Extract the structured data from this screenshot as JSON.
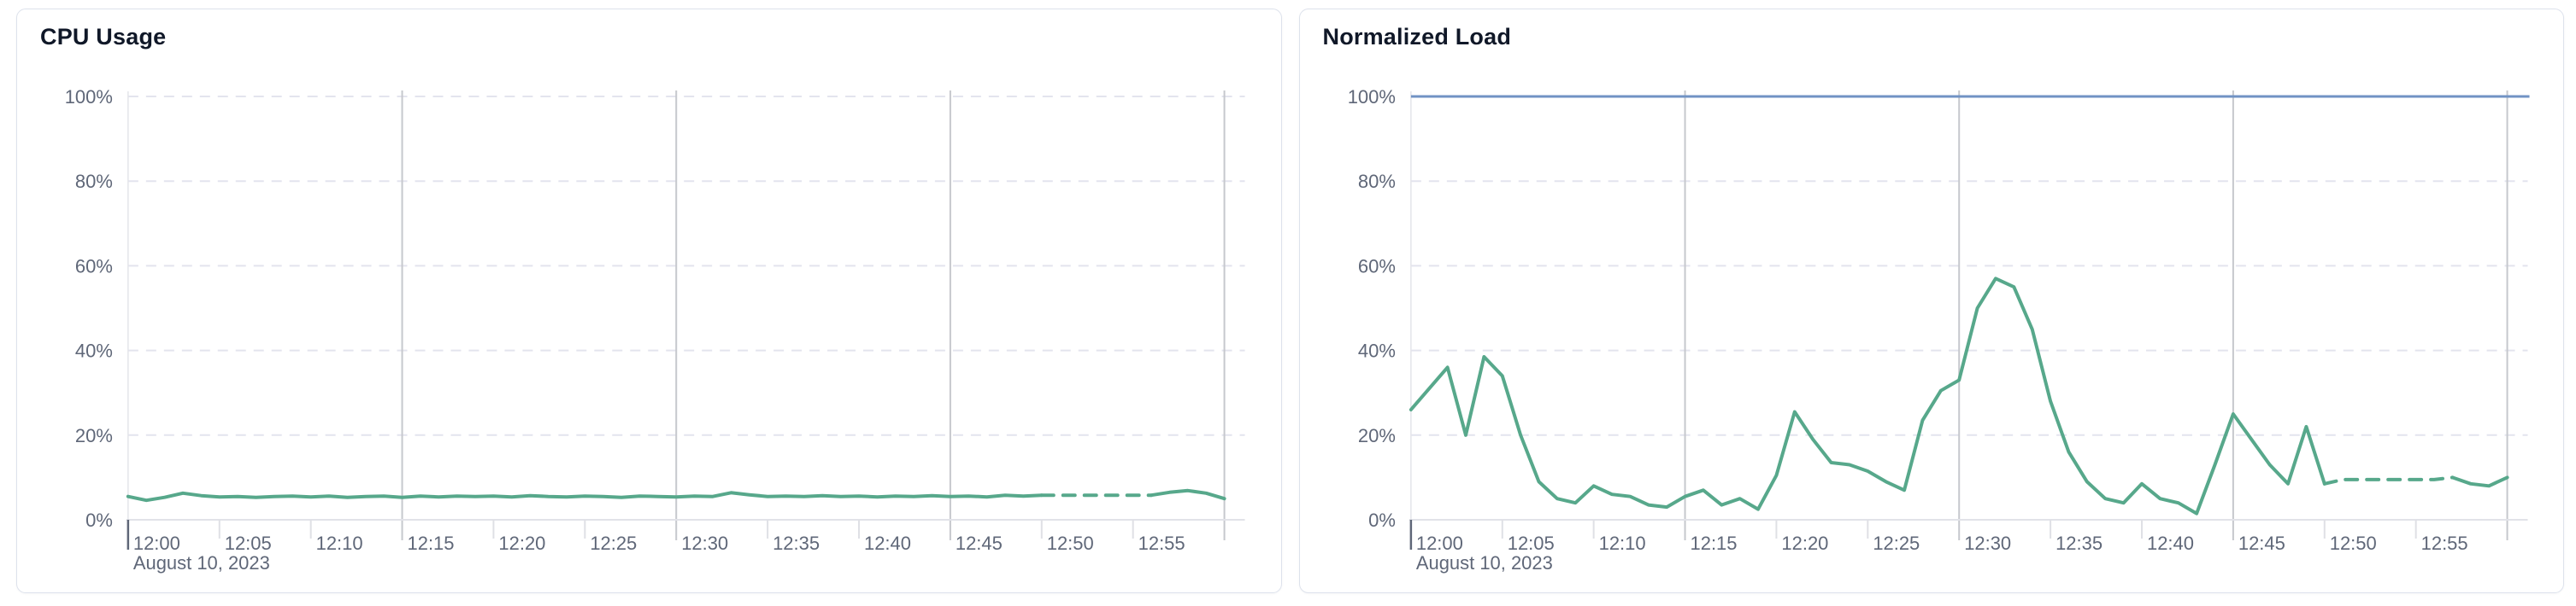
{
  "style": {
    "accent_green": "#57a88b",
    "accent_blue": "#7193c4",
    "text_muted": "#5f6778",
    "title_color": "#101828",
    "grid_dashed_color": "#e3e4ee",
    "grid_vertical_color": "#c6c8cd",
    "axis_color": "#e1e2e8",
    "minor_tick_color": "#dfe0e5",
    "plot_border_color": "#e4e5ea",
    "card_border_color": "#dde2ec"
  },
  "chart_data": [
    {
      "type": "line",
      "title": "CPU Usage",
      "xlabel": "",
      "ylabel": "",
      "date_label": "August 10, 2023",
      "x_tick_labels": [
        "12:00",
        "12:05",
        "12:10",
        "12:15",
        "12:20",
        "12:25",
        "12:30",
        "12:35",
        "12:40",
        "12:45",
        "12:50",
        "12:55"
      ],
      "x_tick_minutes": [
        0,
        5,
        10,
        15,
        20,
        25,
        30,
        35,
        40,
        45,
        50,
        55
      ],
      "y_tick_labels": [
        "0%",
        "20%",
        "40%",
        "60%",
        "80%",
        "100%"
      ],
      "y_tick_values": [
        0,
        20,
        40,
        60,
        80,
        100
      ],
      "ylim": [
        0,
        100
      ],
      "xlim_minutes": [
        0,
        60
      ],
      "grid": {
        "horizontal_dashed_at": [
          20,
          40,
          60,
          80,
          100
        ],
        "vertical_solid_at_minutes": [
          15,
          30,
          45,
          60
        ],
        "minor_tick_minutes": [
          5,
          10,
          20,
          25,
          35,
          40,
          50,
          55
        ]
      },
      "series": [
        {
          "name": "cpu-usage-percent",
          "kind": "line",
          "color": "#57a88b",
          "start_minute": 0,
          "step_minutes": 1,
          "solid_until_minute": 50,
          "dashed_until_minute": 56,
          "values": [
            5.5,
            4.6,
            5.3,
            6.3,
            5.7,
            5.4,
            5.5,
            5.3,
            5.5,
            5.6,
            5.4,
            5.6,
            5.3,
            5.5,
            5.6,
            5.3,
            5.6,
            5.4,
            5.6,
            5.5,
            5.6,
            5.4,
            5.7,
            5.5,
            5.4,
            5.6,
            5.5,
            5.3,
            5.6,
            5.5,
            5.4,
            5.6,
            5.5,
            6.4,
            5.9,
            5.5,
            5.6,
            5.5,
            5.7,
            5.5,
            5.6,
            5.4,
            5.6,
            5.5,
            5.7,
            5.5,
            5.6,
            5.4,
            5.8,
            5.6,
            5.8,
            5.8,
            5.8,
            5.8,
            5.8,
            5.8,
            5.8,
            6.5,
            6.9,
            6.3,
            5.0
          ]
        }
      ]
    },
    {
      "type": "line",
      "title": "Normalized Load",
      "xlabel": "",
      "ylabel": "",
      "date_label": "August 10, 2023",
      "x_tick_labels": [
        "12:00",
        "12:05",
        "12:10",
        "12:15",
        "12:20",
        "12:25",
        "12:30",
        "12:35",
        "12:40",
        "12:45",
        "12:50",
        "12:55"
      ],
      "x_tick_minutes": [
        0,
        5,
        10,
        15,
        20,
        25,
        30,
        35,
        40,
        45,
        50,
        55
      ],
      "y_tick_labels": [
        "0%",
        "20%",
        "40%",
        "60%",
        "80%",
        "100%"
      ],
      "y_tick_values": [
        0,
        20,
        40,
        60,
        80,
        100
      ],
      "ylim": [
        0,
        100
      ],
      "xlim_minutes": [
        0,
        60
      ],
      "grid": {
        "horizontal_dashed_at": [
          20,
          40,
          60,
          80
        ],
        "vertical_solid_at_minutes": [
          15,
          30,
          45,
          60
        ],
        "minor_tick_minutes": [
          5,
          10,
          20,
          25,
          35,
          40,
          50,
          55
        ]
      },
      "series": [
        {
          "name": "normalized-load-percent",
          "kind": "line",
          "color": "#57a88b",
          "start_minute": 0,
          "step_minutes": 1,
          "solid_until_minute": 50,
          "dashed_until_minute": 57,
          "values": [
            26,
            31,
            36,
            20,
            38.5,
            34,
            20,
            9,
            5,
            4,
            8,
            6,
            5.5,
            3.5,
            3,
            5.5,
            7,
            3.5,
            5,
            2.5,
            10.5,
            25.5,
            19,
            13.5,
            13,
            11.5,
            9,
            7,
            23.5,
            30.5,
            33,
            50,
            57,
            55,
            45,
            28,
            16,
            9,
            5,
            4,
            8.5,
            5,
            4,
            1.5,
            13,
            25,
            19,
            13,
            8.5,
            22,
            8.5,
            9.5,
            9.5,
            9.5,
            9.5,
            9.5,
            9.5,
            10,
            8.5,
            8,
            10
          ]
        },
        {
          "name": "limit-100-percent-line",
          "kind": "hline",
          "color": "#7193c4",
          "value": 100
        }
      ]
    }
  ]
}
